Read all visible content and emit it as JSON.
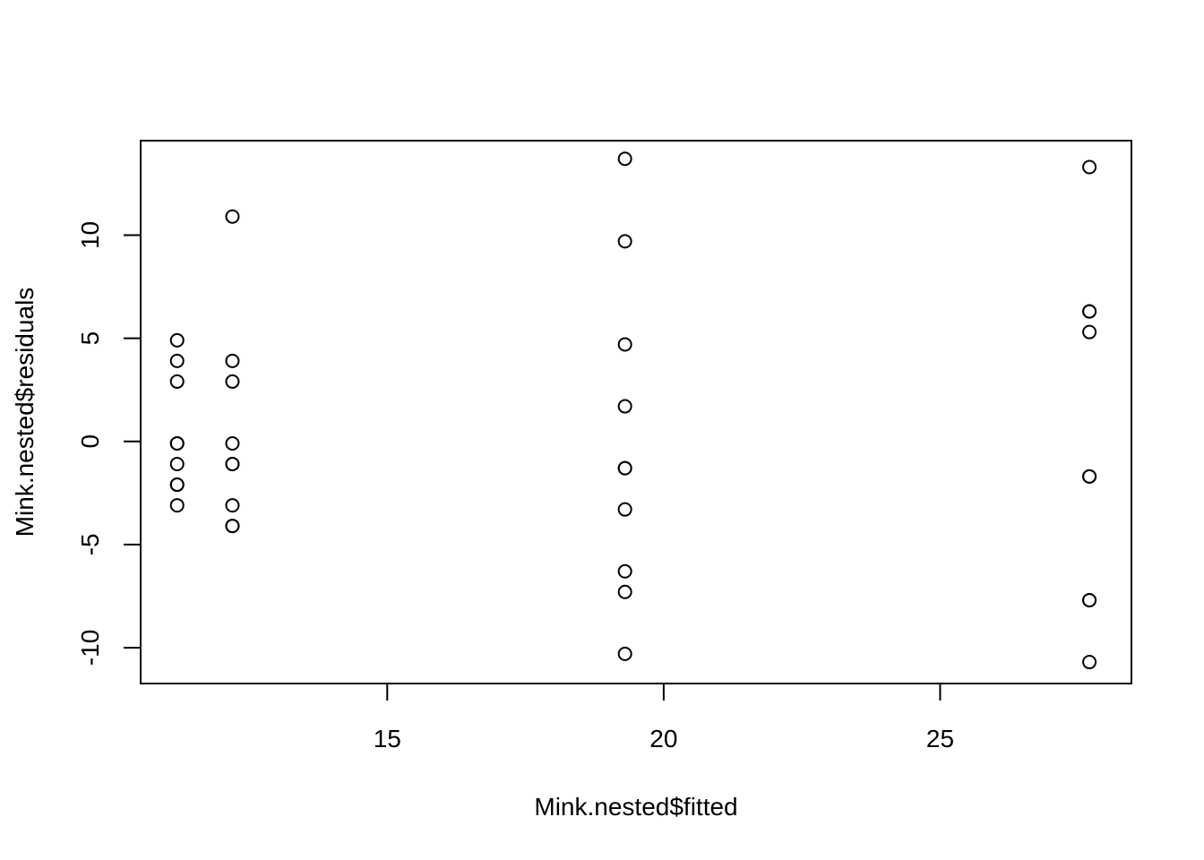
{
  "chart_data": {
    "type": "scatter",
    "title": "",
    "xlabel": "Mink.nested$fitted",
    "ylabel": "Mink.nested$residuals",
    "xlim": [
      10.54,
      28.46
    ],
    "ylim": [
      -11.74,
      14.58
    ],
    "x_ticks": [
      15,
      20,
      25
    ],
    "x_tick_labels": [
      "15",
      "20",
      "25"
    ],
    "y_ticks": [
      -10,
      -5,
      0,
      5,
      10
    ],
    "y_tick_labels": [
      "-10",
      "-5",
      "0",
      "5",
      "10"
    ],
    "grid": false,
    "marker": "open-circle",
    "points": [
      {
        "x": 11.2,
        "y": 4.9
      },
      {
        "x": 11.2,
        "y": 3.9
      },
      {
        "x": 11.2,
        "y": 2.9
      },
      {
        "x": 11.2,
        "y": -0.1
      },
      {
        "x": 11.2,
        "y": -0.1
      },
      {
        "x": 11.2,
        "y": -1.1
      },
      {
        "x": 11.2,
        "y": -2.1
      },
      {
        "x": 11.2,
        "y": -2.1
      },
      {
        "x": 11.2,
        "y": -3.1
      },
      {
        "x": 12.2,
        "y": 10.9
      },
      {
        "x": 12.2,
        "y": 3.9
      },
      {
        "x": 12.2,
        "y": 2.9
      },
      {
        "x": 12.2,
        "y": -0.1
      },
      {
        "x": 12.2,
        "y": -1.1
      },
      {
        "x": 12.2,
        "y": -1.1
      },
      {
        "x": 12.2,
        "y": -3.1
      },
      {
        "x": 12.2,
        "y": -4.1
      },
      {
        "x": 12.2,
        "y": -4.1
      },
      {
        "x": 19.3,
        "y": 13.7
      },
      {
        "x": 19.3,
        "y": 9.7
      },
      {
        "x": 19.3,
        "y": 4.7
      },
      {
        "x": 19.3,
        "y": 1.7
      },
      {
        "x": 19.3,
        "y": -1.3
      },
      {
        "x": 19.3,
        "y": -1.3
      },
      {
        "x": 19.3,
        "y": -3.3
      },
      {
        "x": 19.3,
        "y": -6.3
      },
      {
        "x": 19.3,
        "y": -7.3
      },
      {
        "x": 19.3,
        "y": -10.3
      },
      {
        "x": 27.7,
        "y": 13.3
      },
      {
        "x": 27.7,
        "y": 6.3
      },
      {
        "x": 27.7,
        "y": 6.3
      },
      {
        "x": 27.7,
        "y": 5.3
      },
      {
        "x": 27.7,
        "y": -1.7
      },
      {
        "x": 27.7,
        "y": -1.7
      },
      {
        "x": 27.7,
        "y": -7.7
      },
      {
        "x": 27.7,
        "y": -7.7
      },
      {
        "x": 27.7,
        "y": -10.7
      }
    ]
  }
}
